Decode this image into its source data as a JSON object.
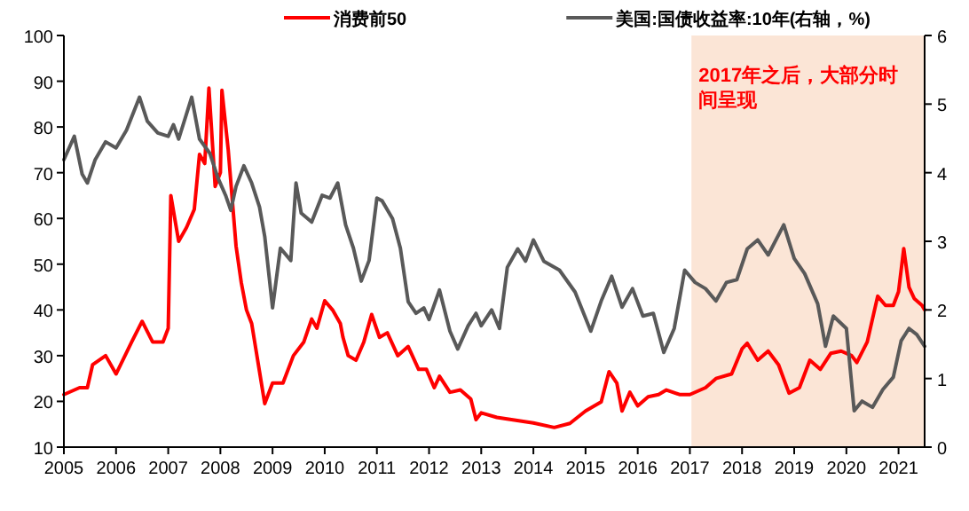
{
  "chart_data": {
    "type": "line",
    "xlim": [
      2005,
      2021.5
    ],
    "xticks": [
      2005,
      2006,
      2007,
      2008,
      2009,
      2010,
      2011,
      2012,
      2013,
      2014,
      2015,
      2016,
      2017,
      2018,
      2019,
      2020,
      2021
    ],
    "ylim": [
      10,
      100
    ],
    "yticks": [
      10,
      20,
      30,
      40,
      50,
      60,
      70,
      80,
      90,
      100
    ],
    "y2lim": [
      0,
      6
    ],
    "y2ticks": [
      0,
      1,
      2,
      3,
      4,
      5,
      6
    ],
    "legend": "top",
    "grid": false,
    "marker": "none",
    "line_style": "solid",
    "bands": [
      {
        "axis": "x",
        "from": 2017.03,
        "to": 2021.5,
        "label": "2017年之后，大部分时间呈现",
        "color": "#fbe5d6"
      }
    ],
    "series": [
      {
        "name": "消费前50",
        "color": "#ff0000",
        "x": [
          2005.0,
          2005.3,
          2005.45,
          2005.55,
          2005.8,
          2006.0,
          2006.3,
          2006.5,
          2006.7,
          2006.9,
          2007.0,
          2007.05,
          2007.2,
          2007.35,
          2007.5,
          2007.6,
          2007.7,
          2007.78,
          2007.9,
          2008.0,
          2008.03,
          2008.15,
          2008.3,
          2008.4,
          2008.5,
          2008.6,
          2008.75,
          2008.85,
          2009.0,
          2009.2,
          2009.4,
          2009.6,
          2009.75,
          2009.85,
          2010.0,
          2010.15,
          2010.3,
          2010.35,
          2010.45,
          2010.6,
          2010.75,
          2010.9,
          2011.05,
          2011.2,
          2011.4,
          2011.6,
          2011.8,
          2011.95,
          2012.1,
          2012.2,
          2012.4,
          2012.6,
          2012.8,
          2012.9,
          2013.0,
          2013.3,
          2014.0,
          2014.4,
          2014.7,
          2015.0,
          2015.3,
          2015.45,
          2015.6,
          2015.7,
          2015.85,
          2016.0,
          2016.2,
          2016.4,
          2016.55,
          2016.8,
          2017.0,
          2017.3,
          2017.5,
          2017.8,
          2018.0,
          2018.1,
          2018.3,
          2018.5,
          2018.7,
          2018.9,
          2019.1,
          2019.3,
          2019.5,
          2019.7,
          2019.9,
          2020.1,
          2020.2,
          2020.4,
          2020.6,
          2020.75,
          2020.9,
          2021.0,
          2021.1,
          2021.2,
          2021.3,
          2021.45,
          2021.5
        ],
        "values": [
          21.5,
          23,
          23,
          28,
          30,
          26,
          33,
          37.5,
          33,
          33,
          36,
          65,
          55,
          58,
          62,
          74,
          72,
          88.5,
          67,
          70,
          88,
          75,
          54,
          46,
          40,
          37,
          26.5,
          19.5,
          24,
          24,
          30,
          33,
          38,
          36,
          42,
          40,
          37,
          34,
          30,
          29,
          33,
          39,
          34,
          35,
          30,
          32,
          27,
          27,
          23,
          25.5,
          22,
          22.5,
          20.5,
          16,
          17.5,
          16.5,
          15.3,
          14.3,
          15.2,
          17.9,
          19.9,
          26.5,
          24,
          17.9,
          22,
          19,
          21,
          21.5,
          22.5,
          21.5,
          21.5,
          23,
          25,
          26,
          31.5,
          32.7,
          29,
          31,
          28,
          21.8,
          23,
          29,
          27,
          30.5,
          31,
          30,
          28.5,
          33,
          43,
          41,
          41,
          44,
          53.4,
          45,
          42.5,
          41,
          40
        ]
      },
      {
        "name": "美国:国债收益率:10年(右轴，%)",
        "color": "#595959",
        "axis": "y2",
        "x": [
          2005.0,
          2005.2,
          2005.35,
          2005.45,
          2005.6,
          2005.8,
          2006.0,
          2006.2,
          2006.45,
          2006.6,
          2006.8,
          2007.0,
          2007.1,
          2007.2,
          2007.45,
          2007.6,
          2007.8,
          2007.95,
          2008.1,
          2008.2,
          2008.3,
          2008.45,
          2008.6,
          2008.75,
          2008.85,
          2009.0,
          2009.15,
          2009.35,
          2009.45,
          2009.55,
          2009.75,
          2009.95,
          2010.1,
          2010.25,
          2010.4,
          2010.55,
          2010.7,
          2010.85,
          2011.0,
          2011.1,
          2011.3,
          2011.45,
          2011.6,
          2011.75,
          2011.9,
          2012.0,
          2012.2,
          2012.4,
          2012.55,
          2012.75,
          2012.9,
          2013.0,
          2013.2,
          2013.35,
          2013.5,
          2013.7,
          2013.85,
          2014.0,
          2014.2,
          2014.5,
          2014.8,
          2015.1,
          2015.3,
          2015.5,
          2015.7,
          2015.9,
          2016.1,
          2016.3,
          2016.5,
          2016.7,
          2016.9,
          2017.1,
          2017.3,
          2017.5,
          2017.7,
          2017.9,
          2018.1,
          2018.3,
          2018.5,
          2018.8,
          2019.0,
          2019.2,
          2019.45,
          2019.6,
          2019.75,
          2020.0,
          2020.15,
          2020.3,
          2020.5,
          2020.7,
          2020.9,
          2021.05,
          2021.2,
          2021.35,
          2021.5
        ],
        "values": [
          4.19,
          4.53,
          3.98,
          3.85,
          4.19,
          4.45,
          4.36,
          4.62,
          5.1,
          4.75,
          4.58,
          4.53,
          4.7,
          4.49,
          5.1,
          4.49,
          4.28,
          3.93,
          3.67,
          3.45,
          3.8,
          4.1,
          3.85,
          3.5,
          3.07,
          2.03,
          2.9,
          2.72,
          3.85,
          3.41,
          3.28,
          3.67,
          3.63,
          3.85,
          3.24,
          2.9,
          2.42,
          2.72,
          3.63,
          3.59,
          3.33,
          2.9,
          2.12,
          1.95,
          2.03,
          1.86,
          2.29,
          1.69,
          1.43,
          1.77,
          1.95,
          1.77,
          2.0,
          1.73,
          2.62,
          2.89,
          2.71,
          3.02,
          2.71,
          2.58,
          2.26,
          1.69,
          2.13,
          2.49,
          2.04,
          2.31,
          1.91,
          1.95,
          1.38,
          1.73,
          2.58,
          2.4,
          2.31,
          2.13,
          2.4,
          2.44,
          2.89,
          3.02,
          2.8,
          3.24,
          2.75,
          2.53,
          2.09,
          1.47,
          1.91,
          1.73,
          0.53,
          0.67,
          0.58,
          0.84,
          1.02,
          1.55,
          1.73,
          1.64,
          1.47
        ]
      }
    ]
  }
}
